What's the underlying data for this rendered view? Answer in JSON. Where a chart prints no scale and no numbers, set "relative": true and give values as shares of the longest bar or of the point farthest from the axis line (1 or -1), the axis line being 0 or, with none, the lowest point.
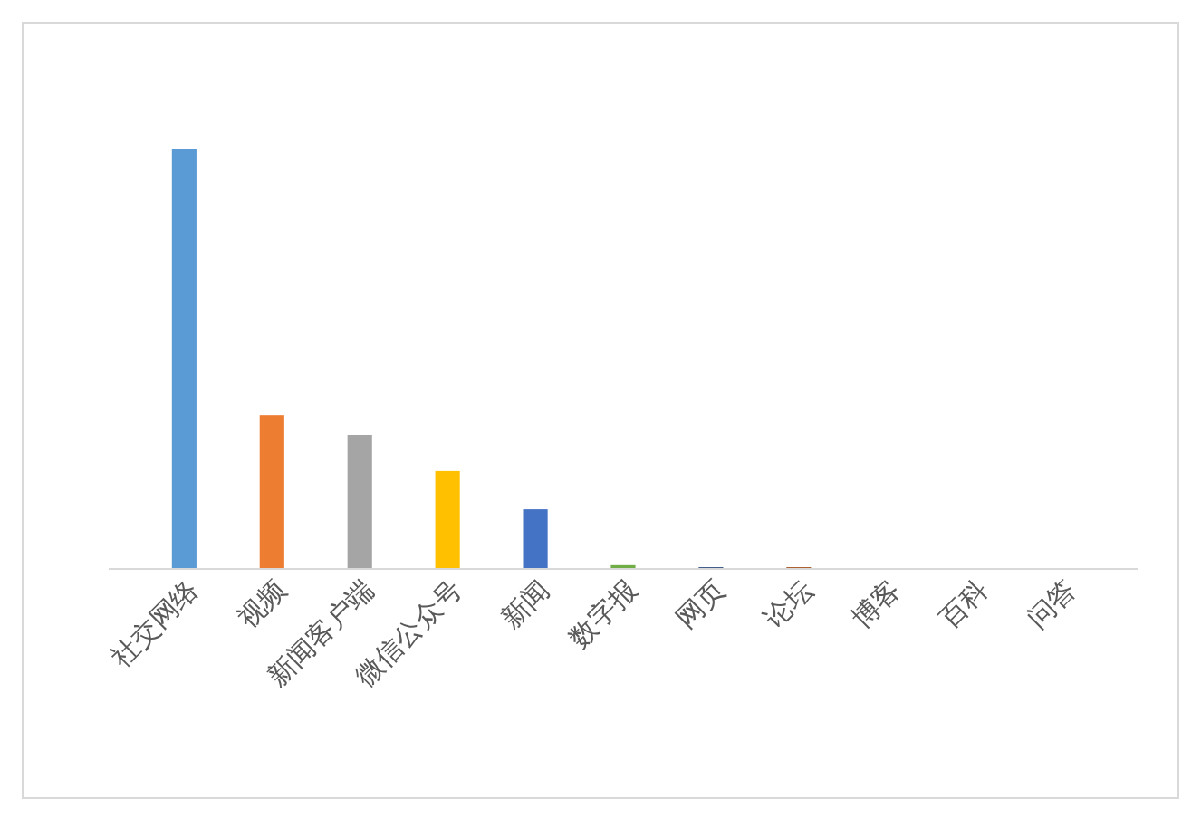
{
  "chart_data": {
    "type": "bar",
    "relative": true,
    "categories": [
      "社交网络",
      "视频",
      "新闻客户端",
      "微信公众号",
      "新闻",
      "数字报",
      "网页",
      "论坛",
      "博客",
      "百科",
      "问答"
    ],
    "values": [
      1,
      0.366,
      0.319,
      0.233,
      0.142,
      0.009,
      0.004,
      0.004,
      0,
      0,
      0
    ],
    "colors": [
      "#5b9bd5",
      "#ed7d31",
      "#a5a5a5",
      "#ffc000",
      "#4472c4",
      "#70ad47",
      "#264478",
      "#9e480e",
      "#636363",
      "#997300",
      "#255e91"
    ]
  }
}
